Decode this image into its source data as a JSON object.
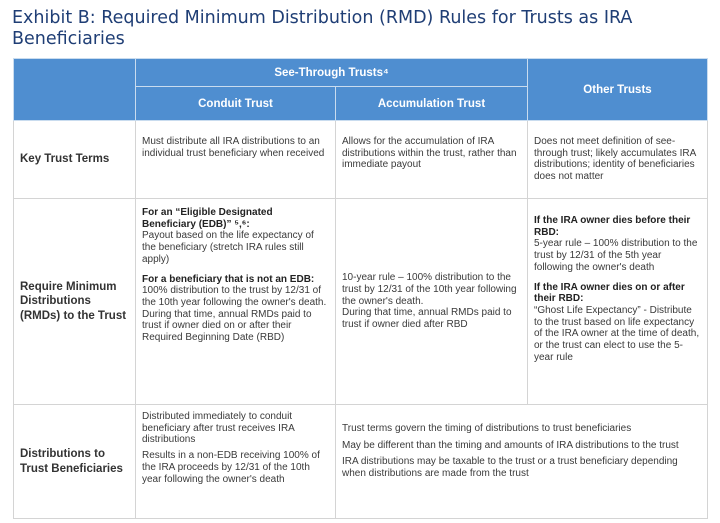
{
  "title": "Exhibit B: Required Minimum Distribution (RMD) Rules for Trusts as IRA Beneficiaries",
  "header": {
    "see_through": "See-Through Trusts⁴",
    "conduit": "Conduit Trust",
    "accumulation": "Accumulation Trust",
    "other": "Other Trusts"
  },
  "rows": {
    "key_terms": {
      "label": "Key Trust Terms",
      "conduit": "Must distribute all IRA distributions to an individual trust beneficiary when received",
      "accumulation": "Allows for the accumulation of IRA distributions within the trust, rather than immediate payout",
      "other": "Does not meet definition of see-through trust; likely accumulates IRA distributions; identity of beneficiaries does not matter"
    },
    "rmds": {
      "label": "Require Minimum Distributions (RMDs) to the Trust",
      "conduit_h1": "For an “Eligible Designated Beneficiary (EDB)” ⁵,⁶:",
      "conduit_p1": "Payout based on the life expectancy of the beneficiary (stretch IRA rules still apply)",
      "conduit_h2": "For a beneficiary that is not an EDB:",
      "conduit_p2": "100% distribution to the trust by 12/31 of the 10th year following the owner's death. During that time, annual RMDs paid to trust if owner died on or after their Required Beginning Date (RBD)",
      "accumulation_p1": "10-year rule – 100% distribution to the trust by 12/31 of the 10th year following the owner's death.",
      "accumulation_p2": "During that time, annual RMDs paid to trust if owner died after RBD",
      "other_h1": "If the IRA owner dies before their RBD:",
      "other_p1": "5-year rule – 100% distribution to the trust by 12/31 of the 5th year following the owner's death",
      "other_h2": "If the IRA owner dies on or after their RBD:",
      "other_p2": "“Ghost Life Expectancy” - Distribute to the trust based on life expectancy of the IRA owner at the time of death, or the trust can elect to use the 5-year rule"
    },
    "distributions": {
      "label": "Distributions to Trust Beneficiaries",
      "conduit_p1": "Distributed immediately to conduit beneficiary after trust receives IRA distributions",
      "conduit_p2": "Results in a non-EDB receiving 100% of the IRA proceeds by 12/31 of the 10th year following the owner's death",
      "merged_p1": "Trust terms govern the timing of distributions to trust beneficiaries",
      "merged_p2": "May be different than the timing and amounts of IRA distributions to the trust",
      "merged_p3": "IRA distributions may be taxable to the trust or a trust beneficiary depending when distributions are made from the trust"
    }
  }
}
